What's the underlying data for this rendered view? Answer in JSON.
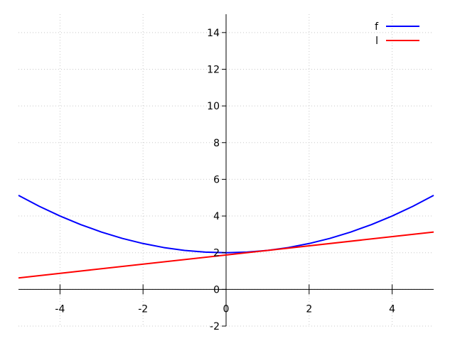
{
  "chart_data": {
    "type": "line",
    "title": "",
    "xlabel": "",
    "ylabel": "",
    "xlim": [
      -5,
      5
    ],
    "ylim": [
      -2,
      15
    ],
    "grid": true,
    "legend_position": "top-right",
    "x_ticks": [
      -4,
      -2,
      0,
      2,
      4
    ],
    "x_tick_labels": [
      "-4",
      "-2",
      "0",
      "2",
      "4"
    ],
    "y_ticks": [
      -2,
      0,
      2,
      4,
      6,
      8,
      10,
      12,
      14
    ],
    "y_tick_labels": [
      "-2",
      "0",
      "2",
      "4",
      "6",
      "8",
      "10",
      "12",
      "14"
    ],
    "series": [
      {
        "name": "f",
        "color": "#0000ff",
        "x": [
          -5,
          -4.5,
          -4,
          -3.5,
          -3,
          -2.5,
          -2,
          -1.5,
          -1,
          -0.5,
          0,
          0.5,
          1,
          1.5,
          2,
          2.5,
          3,
          3.5,
          4,
          4.5,
          5
        ],
        "y": [
          5.125,
          4.531,
          4.0,
          3.531,
          3.125,
          2.781,
          2.5,
          2.281,
          2.125,
          2.031,
          2.0,
          2.031,
          2.125,
          2.281,
          2.5,
          2.781,
          3.125,
          3.531,
          4.0,
          4.531,
          5.125
        ]
      },
      {
        "name": "l",
        "color": "#ff0000",
        "x": [
          -5,
          5
        ],
        "y": [
          0.625,
          3.125
        ]
      }
    ]
  }
}
